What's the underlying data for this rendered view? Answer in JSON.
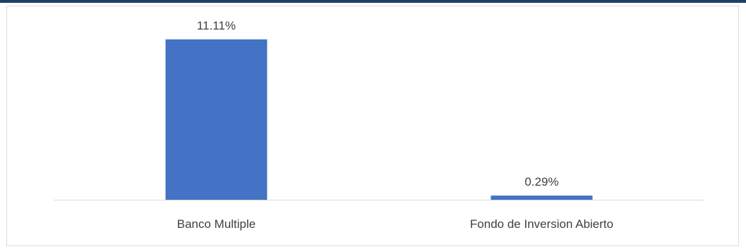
{
  "colors": {
    "top_rule": "#1f3f66",
    "bar": "#4472c4",
    "axis": "#d9d9d9",
    "text": "#404040",
    "frame_border": "#d9d9d9"
  },
  "chart_data": {
    "type": "bar",
    "title": "",
    "xlabel": "",
    "ylabel": "",
    "categories": [
      "Banco Multiple",
      "Fondo de Inversion Abierto"
    ],
    "values": [
      11.11,
      0.29
    ],
    "data_labels": [
      "11.11%",
      "0.29%"
    ],
    "value_unit": "%",
    "ylim": [
      0,
      12
    ],
    "grid": false,
    "legend": "none"
  }
}
